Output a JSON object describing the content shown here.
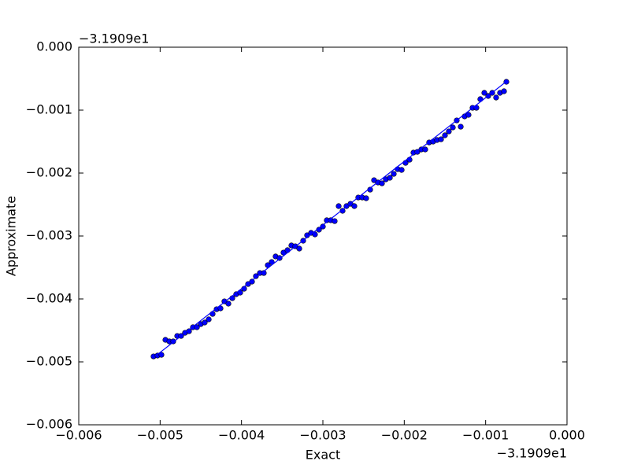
{
  "chart_data": {
    "type": "scatter",
    "x_label": "Exact",
    "y_label": "Approximate",
    "x_offset": "−3.1909e1",
    "y_offset": "−3.1909e1",
    "xlim": [
      -0.006,
      0
    ],
    "ylim": [
      -0.006,
      0
    ],
    "xticks": [
      {
        "value": -0.006,
        "label": "−0.006"
      },
      {
        "value": -0.005,
        "label": "−0.005"
      },
      {
        "value": -0.004,
        "label": "−0.004"
      },
      {
        "value": -0.003,
        "label": "−0.003"
      },
      {
        "value": -0.002,
        "label": "−0.002"
      },
      {
        "value": -0.001,
        "label": "−0.001"
      },
      {
        "value": 0,
        "label": "0.000"
      }
    ],
    "yticks": [
      {
        "value": -0.006,
        "label": "−0.006"
      },
      {
        "value": -0.005,
        "label": "−0.005"
      },
      {
        "value": -0.004,
        "label": "−0.004"
      },
      {
        "value": -0.003,
        "label": "−0.003"
      },
      {
        "value": -0.002,
        "label": "−0.002"
      },
      {
        "value": -0.001,
        "label": "−0.001"
      },
      {
        "value": 0,
        "label": "0.000"
      }
    ],
    "grid": false,
    "series": [
      {
        "color": "#0000ff",
        "kind": "points",
        "x": [
          -0.005081,
          -0.005032,
          -0.004984,
          -0.004935,
          -0.004887,
          -0.004839,
          -0.00479,
          -0.004742,
          -0.004694,
          -0.004645,
          -0.004597,
          -0.004548,
          -0.0045,
          -0.004452,
          -0.004403,
          -0.004355,
          -0.004306,
          -0.004258,
          -0.00421,
          -0.004161,
          -0.004113,
          -0.004065,
          -0.004016,
          -0.003968,
          -0.003919,
          -0.003871,
          -0.003823,
          -0.003774,
          -0.003726,
          -0.003677,
          -0.003629,
          -0.003581,
          -0.003532,
          -0.003484,
          -0.003435,
          -0.003387,
          -0.003339,
          -0.00329,
          -0.003242,
          -0.003194,
          -0.003145,
          -0.003097,
          -0.003048,
          -0.003,
          -0.002952,
          -0.002903,
          -0.002855,
          -0.002806,
          -0.002758,
          -0.00271,
          -0.002661,
          -0.002613,
          -0.002565,
          -0.002516,
          -0.002468,
          -0.002419,
          -0.002371,
          -0.002323,
          -0.002274,
          -0.002226,
          -0.002177,
          -0.002129,
          -0.002081,
          -0.002032,
          -0.001984,
          -0.001935,
          -0.001887,
          -0.001839,
          -0.00179,
          -0.001742,
          -0.001694,
          -0.001645,
          -0.001597,
          -0.001548,
          -0.0015,
          -0.001452,
          -0.001403,
          -0.001355,
          -0.001306,
          -0.001258,
          -0.00121,
          -0.001161,
          -0.001113,
          -0.001065,
          -0.001016,
          -0.000968,
          -0.000919,
          -0.000871,
          -0.000823,
          -0.000774,
          -0.000745
        ],
        "values": [
          -0.004913,
          -0.0049,
          -0.004888,
          -0.00465,
          -0.004675,
          -0.004675,
          -0.004588,
          -0.004588,
          -0.004538,
          -0.004513,
          -0.00445,
          -0.00445,
          -0.0044,
          -0.004375,
          -0.004325,
          -0.004238,
          -0.004163,
          -0.00415,
          -0.004038,
          -0.004075,
          -0.003988,
          -0.003925,
          -0.0039,
          -0.003838,
          -0.003763,
          -0.003725,
          -0.003638,
          -0.003588,
          -0.003588,
          -0.003463,
          -0.003413,
          -0.003325,
          -0.00335,
          -0.003263,
          -0.003225,
          -0.00315,
          -0.003163,
          -0.0032,
          -0.003075,
          -0.002988,
          -0.00295,
          -0.002975,
          -0.0029,
          -0.00285,
          -0.00275,
          -0.00275,
          -0.002763,
          -0.002525,
          -0.0026,
          -0.002525,
          -0.002488,
          -0.002525,
          -0.002388,
          -0.002388,
          -0.0024,
          -0.002263,
          -0.002113,
          -0.00215,
          -0.002163,
          -0.0021,
          -0.002075,
          -0.002013,
          -0.001938,
          -0.00195,
          -0.001838,
          -0.001788,
          -0.001675,
          -0.001663,
          -0.001625,
          -0.001625,
          -0.001513,
          -0.0015,
          -0.001475,
          -0.001463,
          -0.0014,
          -0.001338,
          -0.001275,
          -0.001163,
          -0.001263,
          -0.0011,
          -0.001075,
          -0.000963,
          -0.000963,
          -0.000825,
          -0.000725,
          -0.000775,
          -0.000725,
          -0.0008,
          -0.000725,
          -0.0007,
          -0.00055
        ]
      },
      {
        "color": "#0000ff",
        "kind": "line",
        "x": [
          -0.00506,
          -0.00075
        ],
        "values": [
          -0.00491,
          -0.00055
        ]
      }
    ]
  }
}
